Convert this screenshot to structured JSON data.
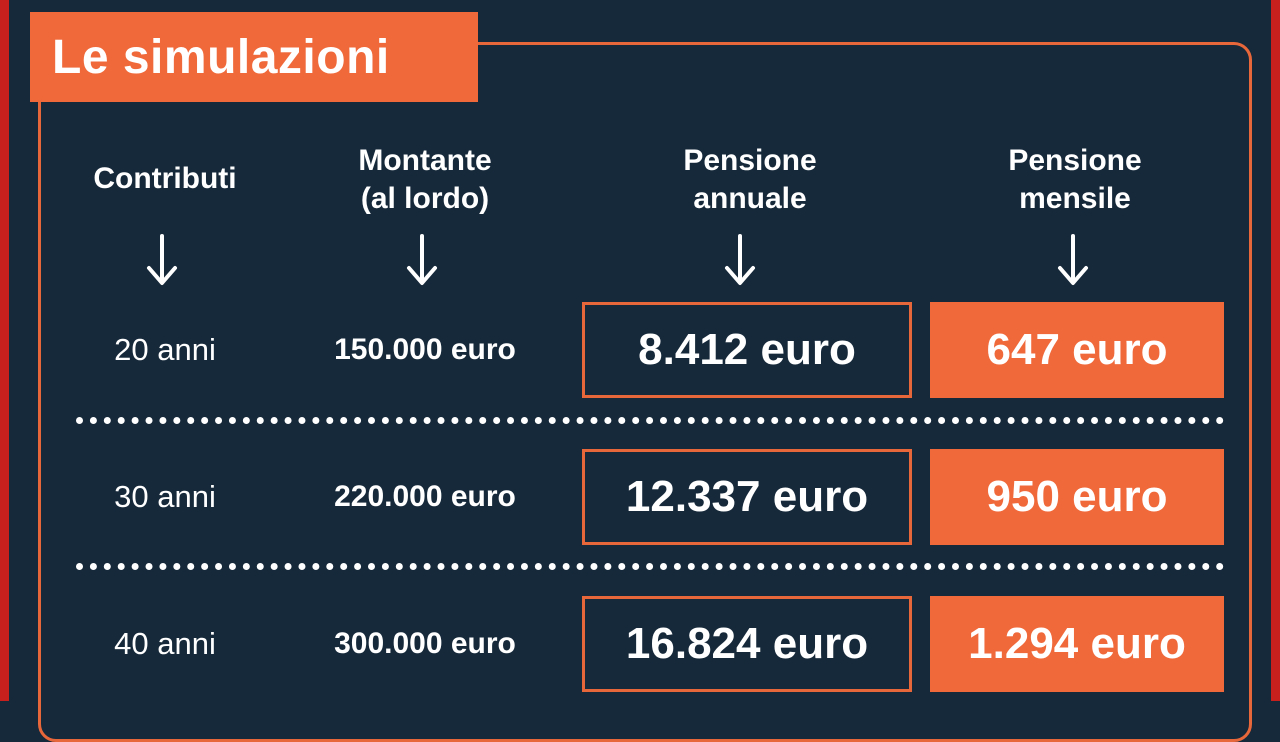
{
  "title": "Le simulazioni",
  "columns": [
    {
      "line1": "Contributi",
      "line2": ""
    },
    {
      "line1": "Montante",
      "line2": "(al lordo)"
    },
    {
      "line1": "Pensione",
      "line2": "annuale"
    },
    {
      "line1": "Pensione",
      "line2": "mensile"
    }
  ],
  "rows": [
    {
      "years": "20 anni",
      "amount": "150.000 euro",
      "annual": "8.412 euro",
      "monthly": "647 euro"
    },
    {
      "years": "30 anni",
      "amount": "220.000 euro",
      "annual": "12.337 euro",
      "monthly": "950 euro"
    },
    {
      "years": "40 anni",
      "amount": "300.000 euro",
      "annual": "16.824 euro",
      "monthly": "1.294 euro"
    }
  ],
  "colors": {
    "background": "#16293a",
    "accent": "#f0693a",
    "edge": "#c8201c",
    "text": "#ffffff"
  },
  "icons": [
    "arrow-down-icon"
  ]
}
